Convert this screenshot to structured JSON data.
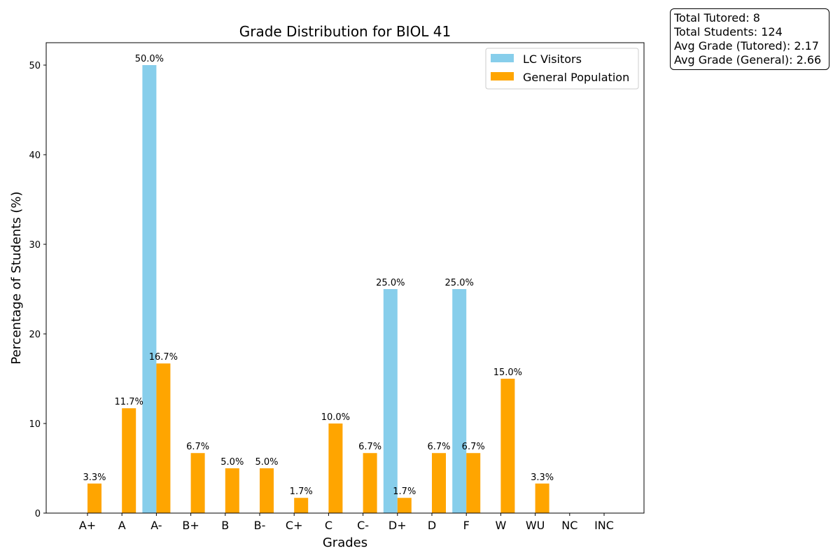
{
  "chart_data": {
    "type": "bar",
    "title": "Grade Distribution for BIOL 41",
    "xlabel": "Grades",
    "ylabel": "Percentage of Students (%)",
    "categories": [
      "A+",
      "A",
      "A-",
      "B+",
      "B",
      "B-",
      "C+",
      "C",
      "C-",
      "D+",
      "D",
      "F",
      "W",
      "WU",
      "NC",
      "INC"
    ],
    "ylim": [
      0,
      52.5
    ],
    "yticks": [
      0,
      10,
      20,
      30,
      40,
      50
    ],
    "grid": false,
    "legend_position": "top-right",
    "series": [
      {
        "name": "LC Visitors",
        "color": "#87CEEB",
        "values": [
          0,
          0,
          50.0,
          0,
          0,
          0,
          0,
          0,
          0,
          25.0,
          0,
          25.0,
          0,
          0,
          0,
          0
        ],
        "labels": [
          "",
          "",
          "50.0%",
          "",
          "",
          "",
          "",
          "",
          "",
          "25.0%",
          "",
          "25.0%",
          "",
          "",
          "",
          ""
        ]
      },
      {
        "name": "General Population",
        "color": "#FFA500",
        "values": [
          3.3,
          11.7,
          16.7,
          6.7,
          5.0,
          5.0,
          1.7,
          10.0,
          6.7,
          1.7,
          6.7,
          6.7,
          15.0,
          3.3,
          0,
          0
        ],
        "labels": [
          "3.3%",
          "11.7%",
          "16.7%",
          "6.7%",
          "5.0%",
          "5.0%",
          "1.7%",
          "10.0%",
          "6.7%",
          "1.7%",
          "6.7%",
          "6.7%",
          "15.0%",
          "3.3%",
          "",
          ""
        ]
      }
    ]
  },
  "stats": {
    "total_tutored": "Total Tutored: 8",
    "total_students": "Total Students: 124",
    "avg_tutored": "Avg Grade (Tutored): 2.17",
    "avg_general": "Avg Grade (General): 2.66"
  }
}
